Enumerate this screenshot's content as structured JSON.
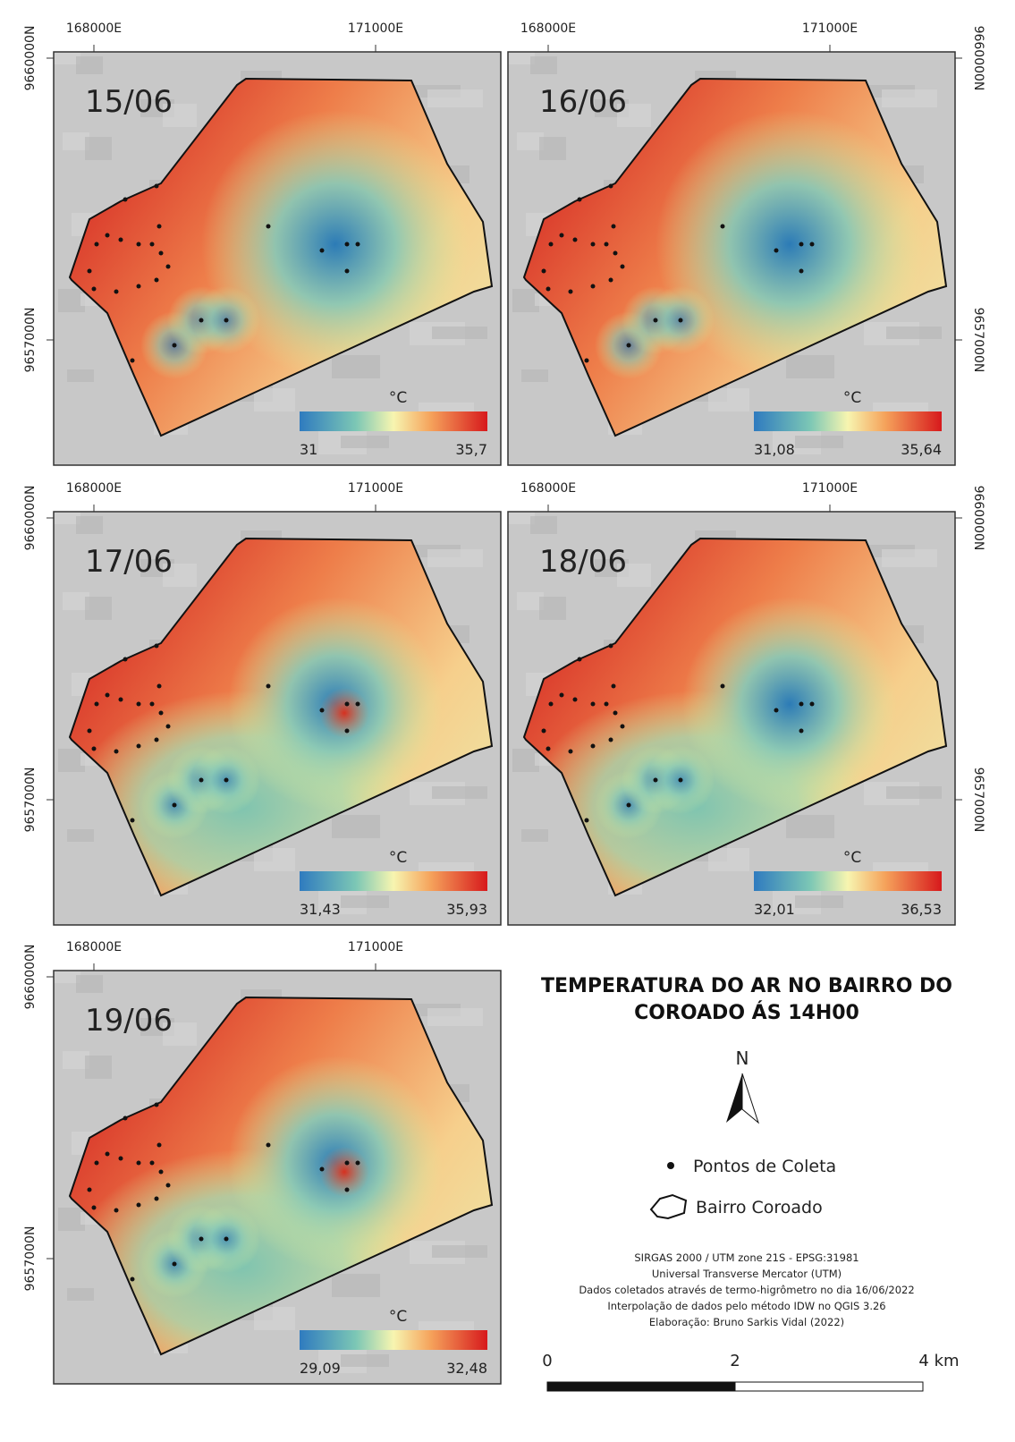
{
  "title": "TEMPERATURA DO AR NO BAIRRO DO COROADO ÁS 14H00",
  "panels": [
    {
      "date": "15/06",
      "unit": "°C",
      "min": "31",
      "max": "35,7",
      "x_labels": [
        "168000E",
        "171000E"
      ],
      "y_labels": [
        "9660000N",
        "9657000N"
      ]
    },
    {
      "date": "16/06",
      "unit": "°C",
      "min": "31,08",
      "max": "35,64",
      "x_labels": [
        "168000E",
        "171000E"
      ],
      "y_labels": [
        "9660000N",
        "9657000N"
      ]
    },
    {
      "date": "17/06",
      "unit": "°C",
      "min": "31,43",
      "max": "35,93",
      "x_labels": [
        "168000E",
        "171000E"
      ],
      "y_labels": [
        "9660000N",
        "9657000N"
      ]
    },
    {
      "date": "18/06",
      "unit": "°C",
      "min": "32,01",
      "max": "36,53",
      "x_labels": [
        "168000E",
        "171000E"
      ],
      "y_labels": [
        "9660000N",
        "9657000N"
      ]
    },
    {
      "date": "19/06",
      "unit": "°C",
      "min": "29,09",
      "max": "32,48",
      "x_labels": [
        "168000E",
        "171000E"
      ],
      "y_labels": [
        "9660000N",
        "9657000N"
      ]
    }
  ],
  "legend": {
    "north": "N",
    "items": [
      "Pontos de Coleta",
      "Bairro Coroado"
    ]
  },
  "credits": [
    "SIRGAS 2000 / UTM zone 21S - EPSG:31981",
    "Universal Transverse Mercator (UTM)",
    "Dados coletados através de termo-higrômetro no dia 16/06/2022",
    "Interpolação de dados pelo método IDW no QGIS 3.26",
    "Elaboração: Bruno Sarkis Vidal (2022)"
  ],
  "scale": {
    "labels": [
      "0",
      "2",
      "4 km"
    ]
  }
}
